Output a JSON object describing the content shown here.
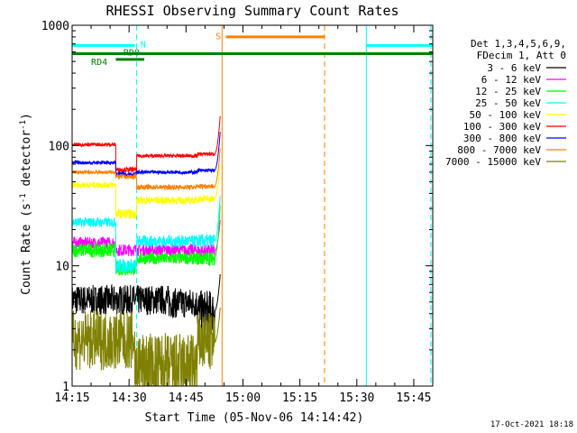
{
  "chart_data": {
    "type": "line",
    "title": "RHESSI Observing Summary Count Rates",
    "xlabel": "Start Time (05-Nov-06 14:14:42)",
    "ylabel_main": "Count Rate (s",
    "ylabel_sup1": "-1",
    "ylabel_mid": " detector",
    "ylabel_sup2": "-1",
    "ylabel_end": ")",
    "y_scale": "log",
    "ylim": [
      1,
      1000
    ],
    "xlim_minutes": [
      0,
      95
    ],
    "x_ticks": [
      {
        "m": 0,
        "label": "14:15"
      },
      {
        "m": 15,
        "label": "14:30"
      },
      {
        "m": 30,
        "label": "14:45"
      },
      {
        "m": 45,
        "label": "15:00"
      },
      {
        "m": 60,
        "label": "15:15"
      },
      {
        "m": 75,
        "label": "15:30"
      },
      {
        "m": 90,
        "label": "15:45"
      }
    ],
    "y_ticks": [
      {
        "v": 1,
        "label": "1"
      },
      {
        "v": 10,
        "label": "10"
      },
      {
        "v": 100,
        "label": "100"
      },
      {
        "v": 1000,
        "label": "1000"
      }
    ],
    "legend": {
      "placement": "right",
      "header1": "Det 1,3,4,5,6,9,",
      "header2": "FDecim 1, Att 0"
    },
    "series": [
      {
        "name": "3 - 6 keV",
        "color": "#000000",
        "segments": [
          {
            "m0": 0,
            "m1": 25.5,
            "v": 5.2,
            "noise": 0.25
          },
          {
            "m0": 25.5,
            "m1": 33,
            "v": 4.9,
            "noise": 0.25
          },
          {
            "m0": 33,
            "m1": 37.5,
            "v": 4.2,
            "noise": 0.35
          }
        ],
        "rise_end": 8.5
      },
      {
        "name": "6 - 12 keV",
        "color": "#ff00ff",
        "segments": [
          {
            "m0": 0,
            "m1": 11.5,
            "v": 15.5,
            "noise": 0.1
          },
          {
            "m0": 11.5,
            "m1": 33,
            "v": 13.5,
            "noise": 0.1
          },
          {
            "m0": 33,
            "m1": 37.5,
            "v": 13.2,
            "noise": 0.12
          }
        ],
        "rise_end": 24
      },
      {
        "name": "12 - 25 keV",
        "color": "#00ff00",
        "segments": [
          {
            "m0": 0,
            "m1": 11.5,
            "v": 13.5,
            "noise": 0.12
          },
          {
            "m0": 11.5,
            "m1": 17,
            "v": 9.5,
            "noise": 0.12
          },
          {
            "m0": 17,
            "m1": 33,
            "v": 11.5,
            "noise": 0.1
          },
          {
            "m0": 33,
            "m1": 37.5,
            "v": 11.5,
            "noise": 0.12
          }
        ],
        "rise_end": 32
      },
      {
        "name": "25 - 50 keV",
        "color": "#00ffff",
        "segments": [
          {
            "m0": 0,
            "m1": 11.5,
            "v": 23,
            "noise": 0.08
          },
          {
            "m0": 11.5,
            "m1": 17,
            "v": 10,
            "noise": 0.12
          },
          {
            "m0": 17,
            "m1": 33,
            "v": 16,
            "noise": 0.1
          },
          {
            "m0": 33,
            "m1": 37.5,
            "v": 16,
            "noise": 0.12
          }
        ],
        "rise_end": 38
      },
      {
        "name": "50 - 100 keV",
        "color": "#ffff00",
        "segments": [
          {
            "m0": 0,
            "m1": 11.5,
            "v": 47,
            "noise": 0.05
          },
          {
            "m0": 11.5,
            "m1": 17,
            "v": 27,
            "noise": 0.08
          },
          {
            "m0": 17,
            "m1": 33,
            "v": 35,
            "noise": 0.06
          },
          {
            "m0": 33,
            "m1": 37.5,
            "v": 36,
            "noise": 0.06
          }
        ],
        "rise_end": 70
      },
      {
        "name": "100 - 300 keV",
        "color": "#ff0000",
        "segments": [
          {
            "m0": 0,
            "m1": 11.5,
            "v": 102,
            "noise": 0.03
          },
          {
            "m0": 11.5,
            "m1": 17,
            "v": 63,
            "noise": 0.04
          },
          {
            "m0": 17,
            "m1": 33,
            "v": 82,
            "noise": 0.03
          },
          {
            "m0": 33,
            "m1": 37.5,
            "v": 85,
            "noise": 0.03
          }
        ],
        "rise_end": 175
      },
      {
        "name": "300 - 800 keV",
        "color": "#0000ff",
        "segments": [
          {
            "m0": 0,
            "m1": 11.5,
            "v": 72,
            "noise": 0.03
          },
          {
            "m0": 11.5,
            "m1": 17,
            "v": 58,
            "noise": 0.04
          },
          {
            "m0": 17,
            "m1": 33,
            "v": 60,
            "noise": 0.03
          },
          {
            "m0": 33,
            "m1": 37.5,
            "v": 62,
            "noise": 0.03
          }
        ],
        "rise_end": 130
      },
      {
        "name": "800 - 7000 keV",
        "color": "#ff8000",
        "segments": [
          {
            "m0": 0,
            "m1": 11.5,
            "v": 60,
            "noise": 0.03
          },
          {
            "m0": 11.5,
            "m1": 17,
            "v": 55,
            "noise": 0.04
          },
          {
            "m0": 17,
            "m1": 33,
            "v": 45,
            "noise": 0.04
          },
          {
            "m0": 33,
            "m1": 37.5,
            "v": 46,
            "noise": 0.04
          }
        ],
        "rise_end": 95
      },
      {
        "name": "7000 - 15000 keV",
        "color": "#808000",
        "segments": [
          {
            "m0": 0,
            "m1": 16.5,
            "v": 2.4,
            "noise": 0.5
          },
          {
            "m0": 16.5,
            "m1": 33,
            "v": 1.4,
            "noise": 0.6
          },
          {
            "m0": 33,
            "m1": 37.5,
            "v": 2.3,
            "noise": 0.5
          }
        ],
        "rise_end": 4.5
      }
    ],
    "attenuator_bars": [
      {
        "label": "N",
        "color": "#00ffff",
        "m0": 0,
        "m1": 16.5,
        "v": 680,
        "label_m": 18,
        "label_v": 700
      },
      {
        "label": "N",
        "color": "#00ffff",
        "m0": 77.5,
        "m1": 95,
        "v": 680,
        "label_m": null,
        "label_v": null
      },
      {
        "label": "S",
        "color": "#ff8000",
        "m0": 40.5,
        "m1": 66.5,
        "v": 800,
        "label_m": 37.8,
        "label_v": 820
      }
    ],
    "decimation_bars": [
      {
        "label": "RD0",
        "color": "#008000",
        "m0": 0,
        "m1": 95,
        "v": 580,
        "label_m": 13.5,
        "label_v": 600
      },
      {
        "label": "RD4",
        "color": "#008000",
        "m0": 11.5,
        "m1": 19,
        "v": 520,
        "label_m": 5,
        "label_v": 500
      }
    ],
    "vertical_lines": [
      {
        "m": 0,
        "color": "#00ffff",
        "style": "solid"
      },
      {
        "m": 17,
        "color": "#00ffff",
        "style": "dashed"
      },
      {
        "m": 39.5,
        "color": "#ff8000",
        "style": "solid"
      },
      {
        "m": 66.5,
        "color": "#ff8000",
        "style": "dashed"
      },
      {
        "m": 77.5,
        "color": "#00ffff",
        "style": "solid"
      },
      {
        "m": 94.5,
        "color": "#00ffff",
        "style": "dashed"
      }
    ]
  },
  "timestamp": "17-Oct-2021 18:18"
}
